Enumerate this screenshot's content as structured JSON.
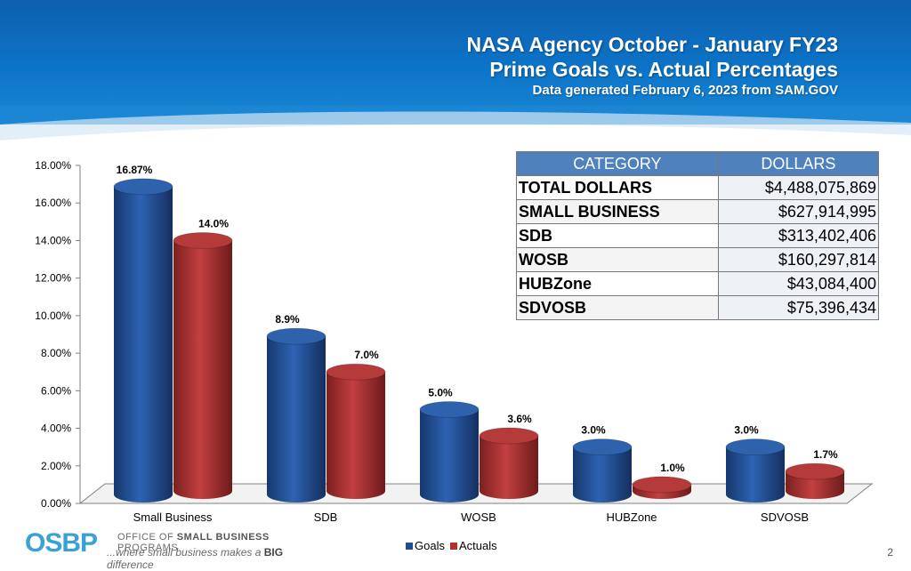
{
  "header": {
    "title_line1": "NASA Agency October - January FY23",
    "title_line2": "Prime Goals vs. Actual Percentages",
    "subtitle": "Data generated February 6, 2023 from SAM.GOV"
  },
  "table": {
    "headers": [
      "CATEGORY",
      "DOLLARS"
    ],
    "rows": [
      {
        "category": "TOTAL DOLLARS",
        "dollars": "$4,488,075,869"
      },
      {
        "category": "SMALL BUSINESS",
        "dollars": "$627,914,995"
      },
      {
        "category": "SDB",
        "dollars": "$313,402,406"
      },
      {
        "category": "WOSB",
        "dollars": "$160,297,814"
      },
      {
        "category": "HUBZone",
        "dollars": "$43,084,400"
      },
      {
        "category": "SDVOSB",
        "dollars": "$75,396,434"
      }
    ]
  },
  "chart_data": {
    "type": "bar",
    "categories": [
      "Small Business",
      "SDB",
      "WOSB",
      "HUBZone",
      "SDVOSB"
    ],
    "series": [
      {
        "name": "Goals",
        "values": [
          16.87,
          8.9,
          5.0,
          3.0,
          3.0
        ],
        "labels": [
          "16.87%",
          "8.9%",
          "5.0%",
          "3.0%",
          "3.0%"
        ],
        "color": "#1f4e96"
      },
      {
        "name": "Actuals",
        "values": [
          14.0,
          7.0,
          3.6,
          1.0,
          1.7
        ],
        "labels": [
          "14.0%",
          "7.0%",
          "3.6%",
          "1.0%",
          "1.7%"
        ],
        "color": "#b03030"
      }
    ],
    "ylim": [
      0,
      18
    ],
    "yticks": [
      "0.00%",
      "2.00%",
      "4.00%",
      "6.00%",
      "8.00%",
      "10.00%",
      "12.00%",
      "14.00%",
      "16.00%",
      "18.00%"
    ],
    "legend_position": "bottom",
    "grid": false
  },
  "footer": {
    "logo_mark": "OSBP",
    "logo_line1_a": "OFFICE OF ",
    "logo_line1_b": "SMALL BUSINESS",
    "logo_line1_c": " PROGRAMS",
    "logo_line2_a": "...where small business makes a ",
    "logo_line2_b": "BIG",
    "logo_line2_c": " difference",
    "page_number": "2"
  },
  "colors": {
    "header_blue": "#0c74c8",
    "goals": "#1f4e96",
    "actuals": "#b03030",
    "table_header": "#4f81bd"
  }
}
